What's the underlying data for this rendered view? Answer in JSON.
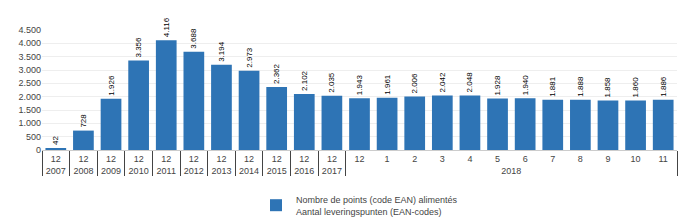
{
  "chart_data": {
    "type": "bar",
    "categories": [
      [
        "2007",
        "12"
      ],
      [
        "2008",
        "12"
      ],
      [
        "2009",
        "12"
      ],
      [
        "2010",
        "12"
      ],
      [
        "2011",
        "12"
      ],
      [
        "2012",
        "12"
      ],
      [
        "2013",
        "12"
      ],
      [
        "2014",
        "12"
      ],
      [
        "2015",
        "12"
      ],
      [
        "2016",
        "12"
      ],
      [
        "2017",
        "12"
      ],
      [
        "2018",
        "1"
      ],
      [
        "2018",
        "2"
      ],
      [
        "2018",
        "3"
      ],
      [
        "2018",
        "4"
      ],
      [
        "2018",
        "5"
      ],
      [
        "2018",
        "6"
      ],
      [
        "2018",
        "7"
      ],
      [
        "2018",
        "8"
      ],
      [
        "2018",
        "9"
      ],
      [
        "2018",
        "10"
      ],
      [
        "2018",
        "11"
      ],
      [
        "2018",
        "12"
      ]
    ],
    "series": [
      {
        "name": "Nombre de points (code EAN) alimentés\nAantal leveringspunten (EAN-codes)",
        "color": "#2E74B5",
        "values": [
          42,
          728,
          1926,
          3356,
          4116,
          3688,
          3194,
          2973,
          2362,
          2102,
          2035,
          1961,
          2006,
          2042,
          2048,
          1928,
          1940,
          1881,
          1888,
          1858,
          1860,
          1886,
          1943
        ],
        "value_labels": [
          "42",
          "728",
          "1.926",
          "3.356",
          "4.116",
          "3.688",
          "3.194",
          "2.973",
          "2.362",
          "2.102",
          "2.035",
          "1.961",
          "2.006",
          "2.042",
          "2.048",
          "1.928",
          "1.940",
          "1.881",
          "1.888",
          "1.858",
          "1.860",
          "1.886",
          "1.943"
        ]
      }
    ],
    "ylim": [
      0,
      4500
    ],
    "yticks": [
      0,
      500,
      {
        "value": 1000,
        "label": "1.000"
      },
      {
        "value": 1500,
        "label": "1.500"
      },
      {
        "value": 2000,
        "label": "2.000"
      },
      {
        "value": 2500,
        "label": "2.500"
      },
      {
        "value": 3000,
        "label": "3.000"
      },
      {
        "value": 3500,
        "label": "3.500"
      },
      {
        "value": 4000,
        "label": "4.000"
      },
      {
        "value": 4500,
        "label": "4.500"
      }
    ],
    "grid": true,
    "data_labels": true,
    "legend": "bottom"
  }
}
